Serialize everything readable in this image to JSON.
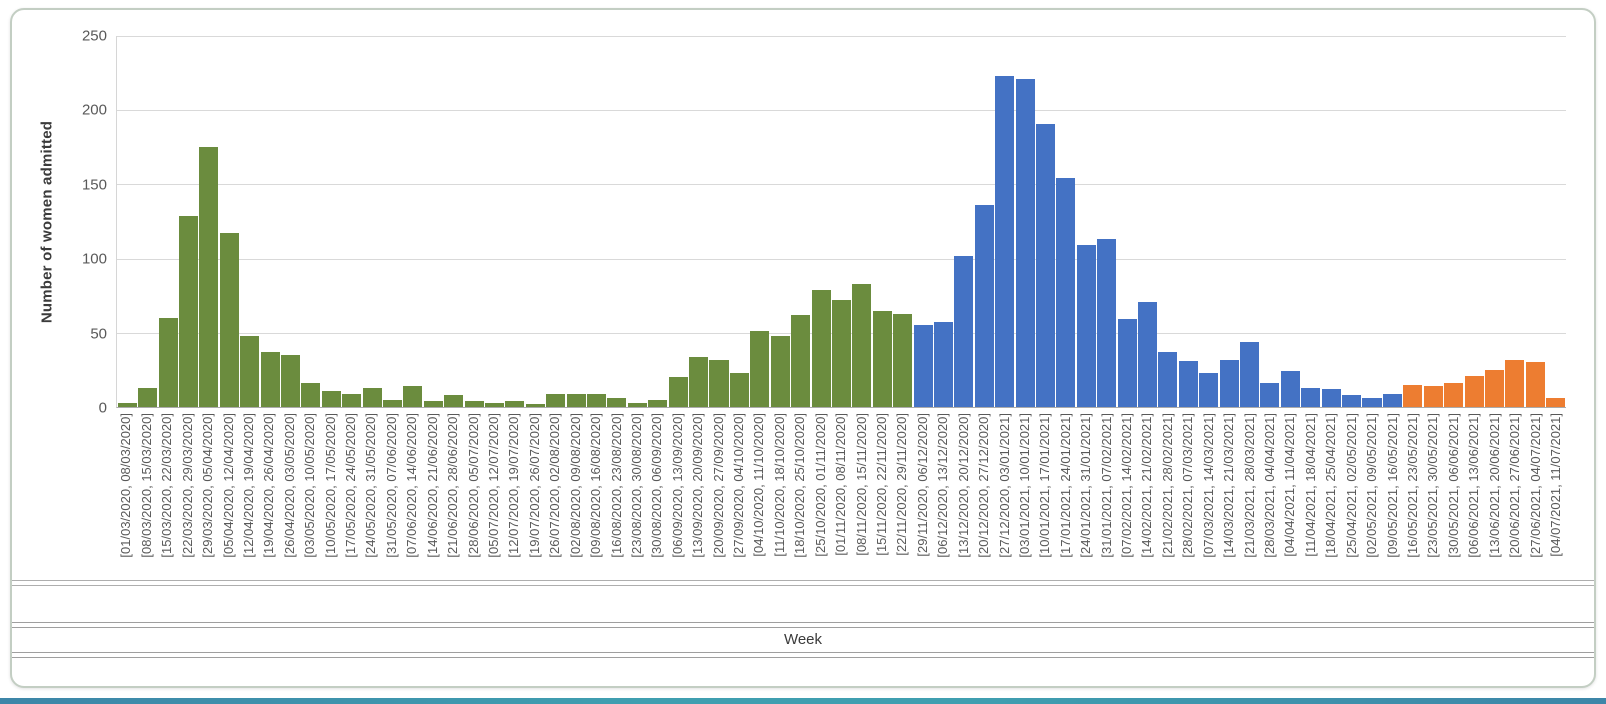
{
  "chart_data": {
    "type": "bar",
    "title": "",
    "xlabel": "Week",
    "ylabel": "Number of women admitted",
    "ylim": [
      0,
      250
    ],
    "yticks": [
      0,
      50,
      100,
      150,
      200,
      250
    ],
    "grid": true,
    "legend": "none",
    "categories": [
      "[01/03/2020, 08/03/2020]",
      "[08/03/2020, 15/03/2020]",
      "[15/03/2020, 22/03/2020]",
      "[22/03/2020, 29/03/2020]",
      "[29/03/2020, 05/04/2020]",
      "[05/04/2020, 12/04/2020]",
      "[12/04/2020, 19/04/2020]",
      "[19/04/2020, 26/04/2020]",
      "[26/04/2020, 03/05/2020]",
      "[03/05/2020, 10/05/2020]",
      "[10/05/2020, 17/05/2020]",
      "[17/05/2020, 24/05/2020]",
      "[24/05/2020, 31/05/2020]",
      "[31/05/2020, 07/06/2020]",
      "[07/06/2020, 14/06/2020]",
      "[14/06/2020, 21/06/2020]",
      "[21/06/2020, 28/06/2020]",
      "[28/06/2020, 05/07/2020]",
      "[05/07/2020, 12/07/2020]",
      "[12/07/2020, 19/07/2020]",
      "[19/07/2020, 26/07/2020]",
      "[26/07/2020, 02/08/2020]",
      "[02/08/2020, 09/08/2020]",
      "[09/08/2020, 16/08/2020]",
      "[16/08/2020, 23/08/2020]",
      "[23/08/2020, 30/08/2020]",
      "[30/08/2020, 06/09/2020]",
      "[06/09/2020, 13/09/2020]",
      "[13/09/2020, 20/09/2020]",
      "[20/09/2020, 27/09/2020]",
      "[27/09/2020, 04/10/2020]",
      "[04/10/2020, 11/10/2020]",
      "[11/10/2020, 18/10/2020]",
      "[18/10/2020, 25/10/2020]",
      "[25/10/2020, 01/11/2020]",
      "[01/11/2020, 08/11/2020]",
      "[08/11/2020, 15/11/2020]",
      "[15/11/2020, 22/11/2020]",
      "[22/11/2020, 29/11/2020]",
      "[29/11/2020, 06/12/2020]",
      "[06/12/2020, 13/12/2020]",
      "[13/12/2020, 20/12/2020]",
      "[20/12/2020, 27/12/2020]",
      "[27/12/2020, 03/01/2021]",
      "[03/01/2021, 10/01/2021]",
      "[10/01/2021, 17/01/2021]",
      "[17/01/2021, 24/01/2021]",
      "[24/01/2021, 31/01/2021]",
      "[31/01/2021, 07/02/2021]",
      "[07/02/2021, 14/02/2021]",
      "[14/02/2021, 21/02/2021]",
      "[21/02/2021, 28/02/2021]",
      "[28/02/2021, 07/03/2021]",
      "[07/03/2021, 14/03/2021]",
      "[14/03/2021, 21/03/2021]",
      "[21/03/2021, 28/03/2021]",
      "[28/03/2021, 04/04/2021]",
      "[04/04/2021, 11/04/2021]",
      "[11/04/2021, 18/04/2021]",
      "[18/04/2021, 25/04/2021]",
      "[25/04/2021, 02/05/2021]",
      "[02/05/2021, 09/05/2021]",
      "[09/05/2021, 16/05/2021]",
      "[16/05/2021, 23/05/2021]",
      "[23/05/2021, 30/05/2021]",
      "[30/05/2021, 06/06/2021]",
      "[06/06/2021, 13/06/2021]",
      "[13/06/2021, 20/06/2021]",
      "[20/06/2021, 27/06/2021]",
      "[27/06/2021, 04/07/2021]",
      "[04/07/2021, 11/07/2021]"
    ],
    "values": [
      3,
      13,
      60,
      129,
      175,
      117,
      48,
      37,
      35,
      16,
      11,
      9,
      13,
      5,
      14,
      4,
      8,
      4,
      3,
      4,
      2,
      9,
      9,
      9,
      6,
      3,
      5,
      20,
      34,
      32,
      23,
      51,
      48,
      62,
      79,
      72,
      83,
      65,
      63,
      55,
      57,
      102,
      136,
      223,
      221,
      191,
      154,
      109,
      113,
      59,
      71,
      37,
      31,
      23,
      32,
      44,
      16,
      24,
      13,
      12,
      8,
      6,
      9,
      15,
      14,
      16,
      21,
      25,
      32,
      30,
      6
    ],
    "segments": [
      {
        "name": "wave-1-spring-2020",
        "color": "#6B8C3E",
        "from": 0,
        "to": 38
      },
      {
        "name": "wave-2-winter-2020-21",
        "color": "#4472C4",
        "from": 39,
        "to": 62
      },
      {
        "name": "wave-3-summer-2021",
        "color": "#ED7D31",
        "from": 63,
        "to": 70
      }
    ],
    "axis_colors": {
      "gridline": "#d9d9d9",
      "axis_line": "#ababab",
      "tick_text": "#595959",
      "title_text": "#3b3b3b"
    }
  }
}
